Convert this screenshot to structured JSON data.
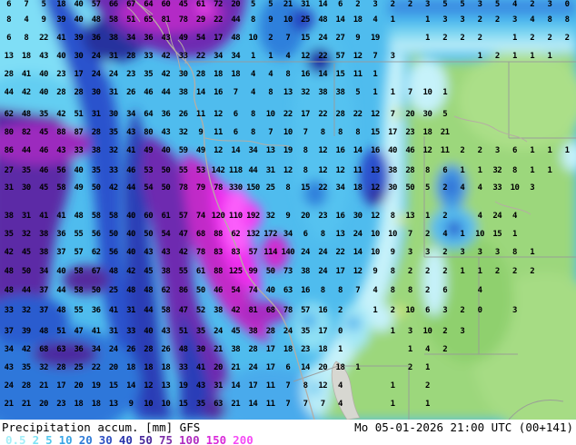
{
  "footer": {
    "title_left": "Precipitation accum. [mm] GFS",
    "title_right": "Mo 05-01-2026 21:00 UTC (00+141)",
    "legend": [
      {
        "label": "0.5",
        "color": "#a5eef8"
      },
      {
        "label": "2",
        "color": "#7fe2f4"
      },
      {
        "label": "5",
        "color": "#54c8ee"
      },
      {
        "label": "10",
        "color": "#3aa4e6"
      },
      {
        "label": "20",
        "color": "#2f7bd8"
      },
      {
        "label": "30",
        "color": "#2e50c4"
      },
      {
        "label": "40",
        "color": "#2a34ac"
      },
      {
        "label": "50",
        "color": "#49289c"
      },
      {
        "label": "75",
        "color": "#7c2da8"
      },
      {
        "label": "100",
        "color": "#b02cc0"
      },
      {
        "label": "150",
        "color": "#d929d9"
      },
      {
        "label": "200",
        "color": "#f54af5"
      }
    ]
  },
  "palette": {
    "ocean_base": "#4fbcee",
    "dry_land_green": "#9cd77c",
    "extreme_pink": "#fb5efb",
    "border_gray": "#999999",
    "coast_gray": "#b5ada3",
    "no_data_gray": "#d7d7d1"
  },
  "map": {
    "row_tops": [
      0,
      17,
      37,
      57,
      77,
      97,
      121,
      141,
      161,
      183,
      202,
      233,
      253,
      273,
      294,
      315,
      337,
      360,
      380,
      400,
      420,
      440
    ],
    "rows": [
      [
        "6",
        "7",
        "5",
        "18",
        "40",
        "57",
        "66",
        "67",
        "64",
        "60",
        "45",
        "61",
        "72",
        "20",
        "5",
        "5",
        "21",
        "31",
        "14",
        "6",
        "2",
        "3",
        "2",
        "2",
        "3",
        "5",
        "5",
        "3",
        "5",
        "4",
        "2",
        "3",
        "0"
      ],
      [
        "8",
        "4",
        "9",
        "39",
        "40",
        "48",
        "58",
        "51",
        "65",
        "81",
        "78",
        "29",
        "22",
        "44",
        "8",
        "9",
        "10",
        "25",
        "48",
        "14",
        "18",
        "4",
        "1",
        "",
        "1",
        "3",
        "3",
        "2",
        "2",
        "3",
        "4",
        "8",
        "8"
      ],
      [
        "6",
        "8",
        "22",
        "41",
        "39",
        "36",
        "38",
        "34",
        "36",
        "43",
        "49",
        "54",
        "17",
        "48",
        "10",
        "2",
        "7",
        "15",
        "24",
        "27",
        "9",
        "19",
        "",
        "",
        "1",
        "2",
        "2",
        "2",
        "",
        "1",
        "2",
        "2",
        "2"
      ],
      [
        "13",
        "18",
        "43",
        "40",
        "30",
        "24",
        "31",
        "28",
        "33",
        "42",
        "33",
        "22",
        "34",
        "34",
        "1",
        "1",
        "4",
        "12",
        "22",
        "57",
        "12",
        "7",
        "3",
        "",
        "",
        "",
        "",
        "1",
        "2",
        "1",
        "1",
        "1",
        ""
      ],
      [
        "28",
        "41",
        "40",
        "23",
        "17",
        "24",
        "24",
        "23",
        "35",
        "42",
        "30",
        "28",
        "18",
        "18",
        "4",
        "4",
        "8",
        "16",
        "14",
        "15",
        "11",
        "1",
        "",
        "",
        "",
        "",
        "",
        "",
        "",
        "",
        "",
        "",
        ""
      ],
      [
        "44",
        "42",
        "40",
        "28",
        "28",
        "30",
        "31",
        "26",
        "46",
        "44",
        "38",
        "14",
        "16",
        "7",
        "4",
        "8",
        "13",
        "32",
        "38",
        "38",
        "5",
        "1",
        "1",
        "7",
        "10",
        "1",
        "",
        "",
        "",
        "",
        "",
        "",
        ""
      ],
      [
        "62",
        "48",
        "35",
        "42",
        "51",
        "31",
        "30",
        "34",
        "64",
        "36",
        "26",
        "11",
        "12",
        "6",
        "8",
        "10",
        "22",
        "17",
        "22",
        "28",
        "22",
        "12",
        "7",
        "20",
        "30",
        "5",
        "",
        "",
        "",
        "",
        "",
        "",
        ""
      ],
      [
        "80",
        "82",
        "45",
        "88",
        "87",
        "28",
        "35",
        "43",
        "80",
        "43",
        "32",
        "9",
        "11",
        "6",
        "8",
        "7",
        "10",
        "7",
        "8",
        "8",
        "8",
        "15",
        "17",
        "23",
        "18",
        "21",
        "",
        "",
        "",
        "",
        "",
        "",
        ""
      ],
      [
        "86",
        "44",
        "46",
        "43",
        "33",
        "38",
        "32",
        "41",
        "49",
        "40",
        "59",
        "49",
        "12",
        "14",
        "34",
        "13",
        "19",
        "8",
        "12",
        "16",
        "14",
        "16",
        "40",
        "46",
        "12",
        "11",
        "2",
        "2",
        "3",
        "6",
        "1",
        "1",
        "1"
      ],
      [
        "27",
        "35",
        "46",
        "56",
        "40",
        "35",
        "33",
        "46",
        "53",
        "50",
        "55",
        "53",
        "142",
        "118",
        "44",
        "31",
        "12",
        "8",
        "12",
        "12",
        "11",
        "13",
        "38",
        "28",
        "8",
        "6",
        "1",
        "1",
        "32",
        "8",
        "1",
        "1",
        ""
      ],
      [
        "31",
        "30",
        "45",
        "58",
        "49",
        "50",
        "42",
        "44",
        "54",
        "50",
        "78",
        "79",
        "78",
        "330",
        "150",
        "25",
        "8",
        "15",
        "22",
        "34",
        "18",
        "12",
        "30",
        "50",
        "5",
        "2",
        "4",
        "4",
        "33",
        "10",
        "3",
        "",
        ""
      ],
      [
        "38",
        "31",
        "41",
        "41",
        "48",
        "58",
        "58",
        "40",
        "60",
        "61",
        "57",
        "74",
        "120",
        "110",
        "192",
        "32",
        "9",
        "20",
        "23",
        "16",
        "30",
        "12",
        "8",
        "13",
        "1",
        "2",
        "",
        "4",
        "24",
        "4",
        "",
        "",
        ""
      ],
      [
        "35",
        "32",
        "38",
        "36",
        "55",
        "56",
        "50",
        "40",
        "50",
        "54",
        "47",
        "68",
        "88",
        "62",
        "132",
        "172",
        "34",
        "6",
        "8",
        "13",
        "24",
        "10",
        "10",
        "7",
        "2",
        "4",
        "1",
        "10",
        "15",
        "1",
        "",
        "",
        ""
      ],
      [
        "42",
        "45",
        "38",
        "37",
        "57",
        "62",
        "56",
        "40",
        "43",
        "43",
        "42",
        "78",
        "83",
        "83",
        "57",
        "114",
        "140",
        "24",
        "24",
        "22",
        "14",
        "10",
        "9",
        "3",
        "3",
        "2",
        "3",
        "3",
        "3",
        "8",
        "1",
        "",
        ""
      ],
      [
        "48",
        "50",
        "34",
        "40",
        "58",
        "67",
        "48",
        "42",
        "45",
        "38",
        "55",
        "61",
        "88",
        "125",
        "99",
        "50",
        "73",
        "38",
        "24",
        "17",
        "12",
        "9",
        "8",
        "2",
        "2",
        "2",
        "1",
        "1",
        "2",
        "2",
        "2",
        "",
        ""
      ],
      [
        "48",
        "44",
        "37",
        "44",
        "58",
        "50",
        "25",
        "48",
        "48",
        "62",
        "86",
        "50",
        "46",
        "54",
        "74",
        "40",
        "63",
        "16",
        "8",
        "8",
        "7",
        "4",
        "8",
        "8",
        "2",
        "6",
        "",
        "4",
        "",
        "",
        "",
        "",
        ""
      ],
      [
        "33",
        "32",
        "37",
        "48",
        "55",
        "36",
        "41",
        "31",
        "44",
        "58",
        "47",
        "52",
        "38",
        "42",
        "81",
        "68",
        "78",
        "57",
        "16",
        "2",
        "",
        "1",
        "2",
        "10",
        "6",
        "3",
        "2",
        "0",
        "",
        "3",
        "",
        "",
        ""
      ],
      [
        "37",
        "39",
        "48",
        "51",
        "47",
        "41",
        "31",
        "33",
        "40",
        "43",
        "51",
        "35",
        "24",
        "45",
        "38",
        "28",
        "24",
        "35",
        "17",
        "0",
        "",
        "",
        "1",
        "3",
        "10",
        "2",
        "3",
        "",
        "",
        "",
        "",
        "",
        ""
      ],
      [
        "34",
        "42",
        "68",
        "63",
        "36",
        "34",
        "24",
        "26",
        "28",
        "26",
        "48",
        "30",
        "21",
        "38",
        "28",
        "17",
        "18",
        "23",
        "18",
        "1",
        "",
        "",
        "",
        "1",
        "4",
        "2",
        "",
        "",
        "",
        "",
        "",
        "",
        ""
      ],
      [
        "43",
        "35",
        "32",
        "28",
        "25",
        "22",
        "20",
        "18",
        "18",
        "18",
        "33",
        "41",
        "20",
        "21",
        "24",
        "17",
        "6",
        "14",
        "20",
        "18",
        "1",
        "",
        "",
        "2",
        "1",
        "",
        "",
        "",
        "",
        "",
        "",
        "",
        ""
      ],
      [
        "24",
        "28",
        "21",
        "17",
        "20",
        "19",
        "15",
        "14",
        "12",
        "13",
        "19",
        "43",
        "31",
        "14",
        "17",
        "11",
        "7",
        "8",
        "12",
        "4",
        "",
        "",
        "1",
        "",
        "2",
        "",
        "",
        "",
        "",
        "",
        "",
        "",
        ""
      ],
      [
        "21",
        "21",
        "20",
        "23",
        "18",
        "18",
        "13",
        "9",
        "10",
        "10",
        "15",
        "35",
        "63",
        "21",
        "14",
        "11",
        "7",
        "7",
        "7",
        "4",
        "",
        "",
        "1",
        "",
        "1",
        "",
        "",
        "",
        "",
        "",
        "",
        "",
        ""
      ]
    ]
  }
}
